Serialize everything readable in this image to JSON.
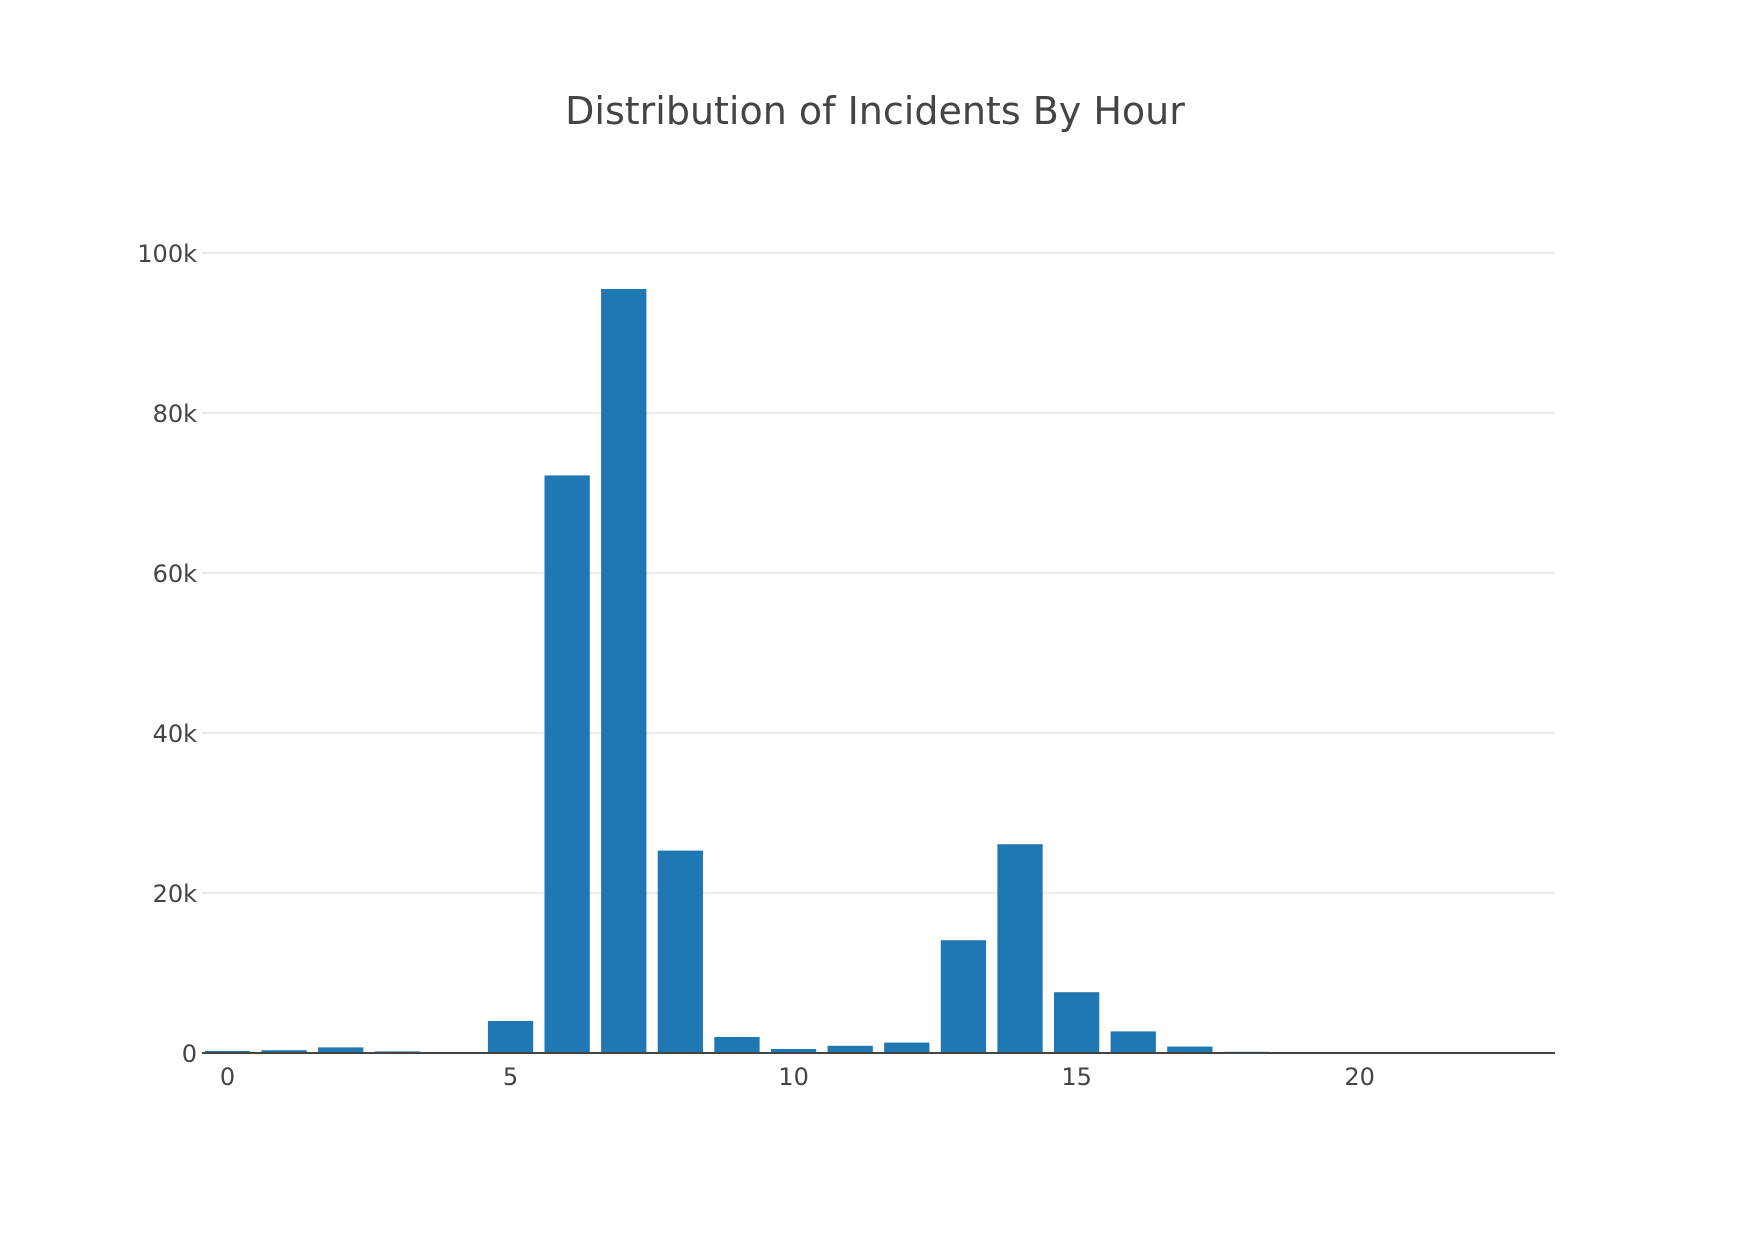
{
  "chart_data": {
    "type": "bar",
    "title": "Distribution of Incidents By Hour",
    "xlabel": "",
    "ylabel": "",
    "x": [
      0,
      1,
      2,
      3,
      4,
      5,
      6,
      7,
      8,
      9,
      10,
      11,
      12,
      13,
      14,
      15,
      16,
      17,
      18,
      19,
      20,
      21,
      22,
      23
    ],
    "values": [
      250,
      350,
      700,
      200,
      50,
      4000,
      72200,
      95500,
      25300,
      2000,
      500,
      900,
      1300,
      14100,
      26100,
      7600,
      2700,
      800,
      150,
      80,
      60,
      50,
      40,
      30
    ],
    "xlim": [
      -0.45,
      23.45
    ],
    "ylim": [
      0,
      100000
    ],
    "x_ticks": [
      0,
      5,
      10,
      15,
      20
    ],
    "x_tick_labels": [
      "0",
      "5",
      "10",
      "15",
      "20"
    ],
    "y_ticks": [
      0,
      20000,
      40000,
      60000,
      80000,
      100000
    ],
    "y_tick_labels": [
      "0",
      "20k",
      "40k",
      "60k",
      "80k",
      "100k"
    ],
    "grid": true,
    "bar_color": "#1f77b4"
  }
}
